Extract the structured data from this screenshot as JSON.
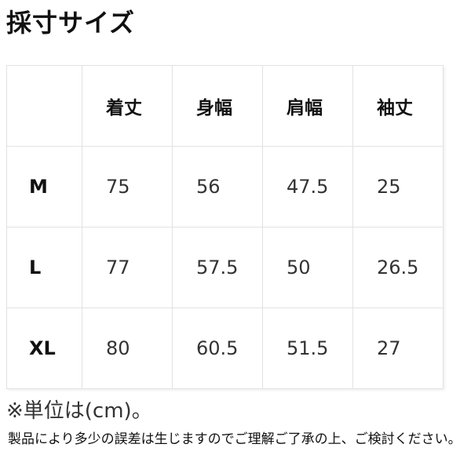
{
  "title": "採寸サイズ",
  "table": {
    "headers": [
      "",
      "着丈",
      "身幅",
      "肩幅",
      "袖丈"
    ],
    "rows": [
      [
        "M",
        "75",
        "56",
        "47.5",
        "25"
      ],
      [
        "L",
        "77",
        "57.5",
        "50",
        "26.5"
      ],
      [
        "XL",
        "80",
        "60.5",
        "51.5",
        "27"
      ]
    ]
  },
  "unit_note": "※単位は(cm)。",
  "disclaimer": "製品により多少の誤差は生じますのでご理解ご了承の上、ご検討ください。"
}
